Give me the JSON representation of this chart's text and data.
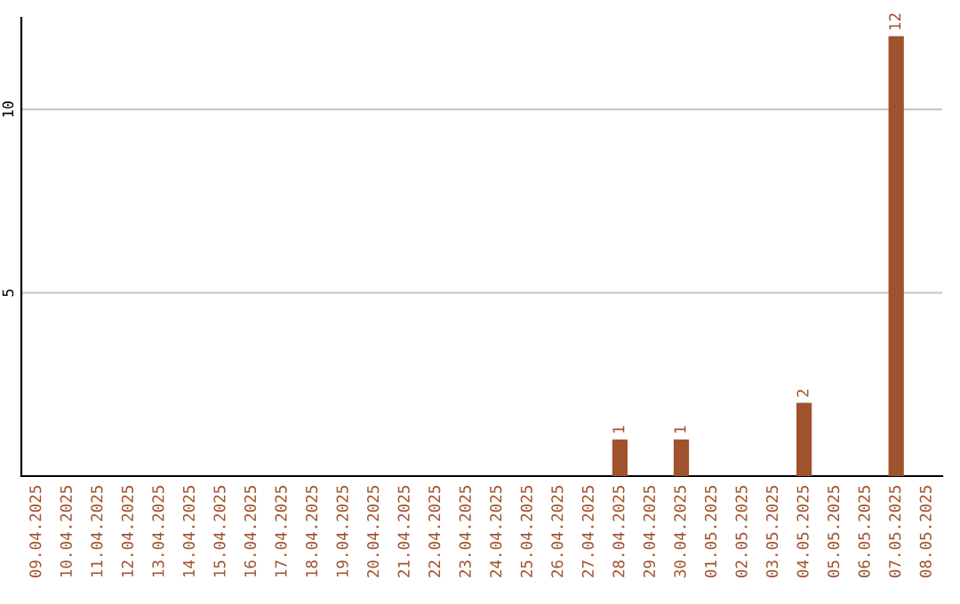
{
  "chart_data": {
    "type": "bar",
    "categories": [
      "09.04.2025",
      "10.04.2025",
      "11.04.2025",
      "12.04.2025",
      "13.04.2025",
      "14.04.2025",
      "15.04.2025",
      "16.04.2025",
      "17.04.2025",
      "18.04.2025",
      "19.04.2025",
      "20.04.2025",
      "21.04.2025",
      "22.04.2025",
      "23.04.2025",
      "24.04.2025",
      "25.04.2025",
      "26.04.2025",
      "27.04.2025",
      "28.04.2025",
      "29.04.2025",
      "30.04.2025",
      "01.05.2025",
      "02.05.2025",
      "03.05.2025",
      "04.05.2025",
      "05.05.2025",
      "06.05.2025",
      "07.05.2025",
      "08.05.2025"
    ],
    "values": [
      0,
      0,
      0,
      0,
      0,
      0,
      0,
      0,
      0,
      0,
      0,
      0,
      0,
      0,
      0,
      0,
      0,
      0,
      0,
      1,
      0,
      1,
      0,
      0,
      0,
      2,
      0,
      0,
      12,
      0
    ],
    "value_labels": [
      null,
      null,
      null,
      null,
      null,
      null,
      null,
      null,
      null,
      null,
      null,
      null,
      null,
      null,
      null,
      null,
      null,
      null,
      null,
      "1",
      null,
      "1",
      null,
      null,
      null,
      "2",
      null,
      null,
      "12",
      null
    ],
    "color": "#a0522d",
    "ylim": [
      0,
      12.5
    ],
    "yticks": [
      5,
      10
    ],
    "grid": "y"
  }
}
